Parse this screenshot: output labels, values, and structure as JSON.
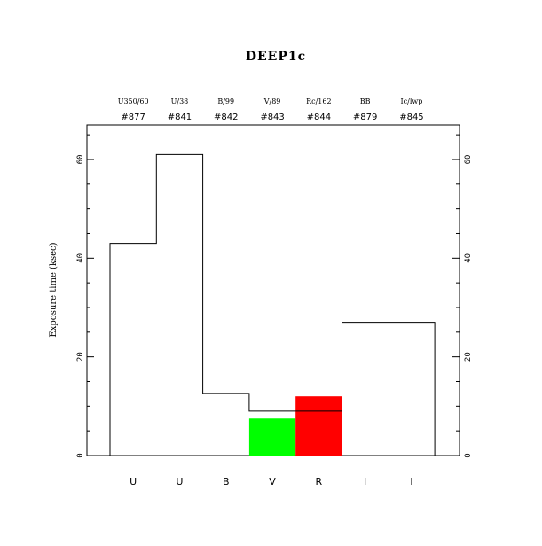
{
  "chart_data": {
    "type": "bar",
    "title": "DEEP1c",
    "ylabel": "Exposure time (ksec)",
    "xlabel": "",
    "ylim": [
      0,
      67
    ],
    "yticks": [
      0,
      20,
      40,
      60
    ],
    "categories": [
      "U",
      "U",
      "B",
      "V",
      "R",
      "I",
      "I"
    ],
    "filter_names": [
      "U350/60",
      "U/38",
      "B/99",
      "V/89",
      "Rc/162",
      "BB",
      "Ic/lwp"
    ],
    "filter_ids": [
      "#877",
      "#841",
      "#842",
      "#843",
      "#844",
      "#879",
      "#845"
    ],
    "series": [
      {
        "values": [
          43,
          61,
          12.6,
          9,
          9,
          27,
          27
        ],
        "color": "#000000",
        "style": "step-outline"
      },
      {
        "values": [
          0,
          0,
          0,
          7.5,
          0,
          0,
          0
        ],
        "color": "#00ff00",
        "style": "filled"
      },
      {
        "values": [
          0,
          0,
          0,
          0,
          12,
          0,
          0
        ],
        "color": "#ff0000",
        "style": "filled"
      }
    ],
    "grid": false,
    "legend": "none"
  }
}
